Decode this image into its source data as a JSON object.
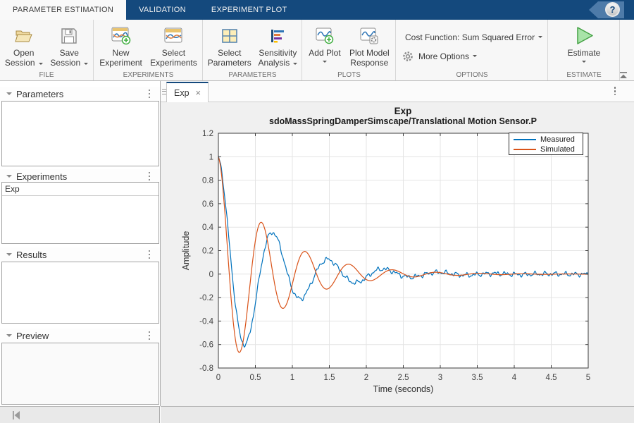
{
  "tabstrip": {
    "tabs": [
      {
        "label": "PARAMETER ESTIMATION",
        "active": true
      },
      {
        "label": "VALIDATION",
        "active": false
      },
      {
        "label": "EXPERIMENT PLOT",
        "active": false
      }
    ],
    "help_glyph": "?"
  },
  "ribbon": {
    "sections": [
      {
        "label": "FILE",
        "buttons": [
          {
            "line1": "Open",
            "line2": "Session",
            "dropdown": true
          },
          {
            "line1": "Save",
            "line2": "Session",
            "dropdown": true
          }
        ]
      },
      {
        "label": "EXPERIMENTS",
        "buttons": [
          {
            "line1": "New",
            "line2": "Experiment"
          },
          {
            "line1": "Select",
            "line2": "Experiments"
          }
        ]
      },
      {
        "label": "PARAMETERS",
        "buttons": [
          {
            "line1": "Select",
            "line2": "Parameters"
          },
          {
            "line1": "Sensitivity",
            "line2": "Analysis",
            "dropdown": true
          }
        ]
      },
      {
        "label": "PLOTS",
        "buttons": [
          {
            "line1": "Add Plot",
            "dropdown_below": true
          },
          {
            "line1": "Plot Model",
            "line2": "Response"
          }
        ]
      },
      {
        "label": "OPTIONS",
        "rows": [
          {
            "label": "Cost Function: Sum Squared Error",
            "dropdown": true
          },
          {
            "label": "More Options",
            "icon": "gear",
            "dropdown": true
          }
        ]
      },
      {
        "label": "ESTIMATE",
        "buttons": [
          {
            "line1": "Estimate",
            "dropdown_below": true
          }
        ]
      }
    ]
  },
  "sidebar": {
    "panels": [
      {
        "title": "Parameters",
        "items": []
      },
      {
        "title": "Experiments",
        "items": [
          "Exp"
        ]
      },
      {
        "title": "Results",
        "items": []
      },
      {
        "title": "Preview",
        "items": []
      }
    ]
  },
  "doc": {
    "tabs": [
      {
        "label": "Exp",
        "active": true,
        "closable": true
      }
    ]
  },
  "colors": {
    "accent_navy": "#14497d",
    "measured_line": "#0072BD",
    "simulated_line": "#D95319",
    "estimate_green": "#a8e3a8",
    "figure_background": "#f0f0f0"
  },
  "chart_data": {
    "type": "line",
    "title": "Exp",
    "subtitle": "sdoMassSpringDamperSimscape/Translational Motion Sensor.P",
    "xlabel": "Time (seconds)",
    "ylabel": "Amplitude",
    "xlim": [
      0,
      5
    ],
    "ylim": [
      -0.8,
      1.2
    ],
    "x_ticks": [
      0,
      0.5,
      1,
      1.5,
      2,
      2.5,
      3,
      3.5,
      4,
      4.5,
      5
    ],
    "x_tick_labels": [
      "0",
      "0.5",
      "1",
      "1.5",
      "2",
      "2.5",
      "3",
      "3.5",
      "4",
      "4.5",
      "5"
    ],
    "y_ticks": [
      -0.8,
      -0.6,
      -0.4,
      -0.2,
      0,
      0.2,
      0.4,
      0.6,
      0.8,
      1,
      1.2
    ],
    "y_tick_labels": [
      "-0.8",
      "-0.6",
      "-0.4",
      "-0.2",
      "0",
      "0.2",
      "0.4",
      "0.6",
      "0.8",
      "1",
      "1.2"
    ],
    "grid": true,
    "legend": {
      "position": "top-right",
      "entries": [
        "Measured",
        "Simulated"
      ]
    },
    "series": [
      {
        "name": "Measured",
        "color": "#0072BD",
        "style": "noisy damped oscillation",
        "model": {
          "type": "damped_cosine",
          "amplitude": 1,
          "decay_per_s": 1.4,
          "omega_rad_per_s": 8.4,
          "noise_amplitude": 0.012
        },
        "keypoints": [
          [
            0,
            1.0
          ],
          [
            0.19,
            0
          ],
          [
            0.38,
            -0.6
          ],
          [
            0.56,
            0
          ],
          [
            0.74,
            0.35
          ],
          [
            0.93,
            0
          ],
          [
            1.1,
            -0.24
          ],
          [
            1.3,
            0
          ],
          [
            1.48,
            0.12
          ],
          [
            1.85,
            -0.08
          ],
          [
            2.2,
            0.05
          ],
          [
            2.6,
            -0.03
          ],
          [
            3.0,
            0.02
          ],
          [
            4.0,
            0.01
          ],
          [
            5.0,
            0
          ]
        ]
      },
      {
        "name": "Simulated",
        "color": "#D95319",
        "style": "smooth damped oscillation",
        "model": {
          "type": "damped_cosine",
          "amplitude": 1,
          "decay_per_s": 1.4,
          "omega_rad_per_s": 10.65,
          "noise_amplitude": 0
        },
        "keypoints": [
          [
            0,
            1.0
          ],
          [
            0.15,
            0
          ],
          [
            0.3,
            -0.65
          ],
          [
            0.45,
            0
          ],
          [
            0.62,
            0.43
          ],
          [
            0.77,
            0
          ],
          [
            0.92,
            -0.31
          ],
          [
            1.06,
            0
          ],
          [
            1.21,
            0.19
          ],
          [
            1.36,
            0
          ],
          [
            1.5,
            -0.13
          ],
          [
            1.8,
            0.09
          ],
          [
            2.1,
            -0.05
          ],
          [
            2.4,
            0.035
          ],
          [
            3.0,
            0.015
          ],
          [
            4.0,
            0.005
          ],
          [
            5.0,
            0
          ]
        ]
      }
    ]
  }
}
